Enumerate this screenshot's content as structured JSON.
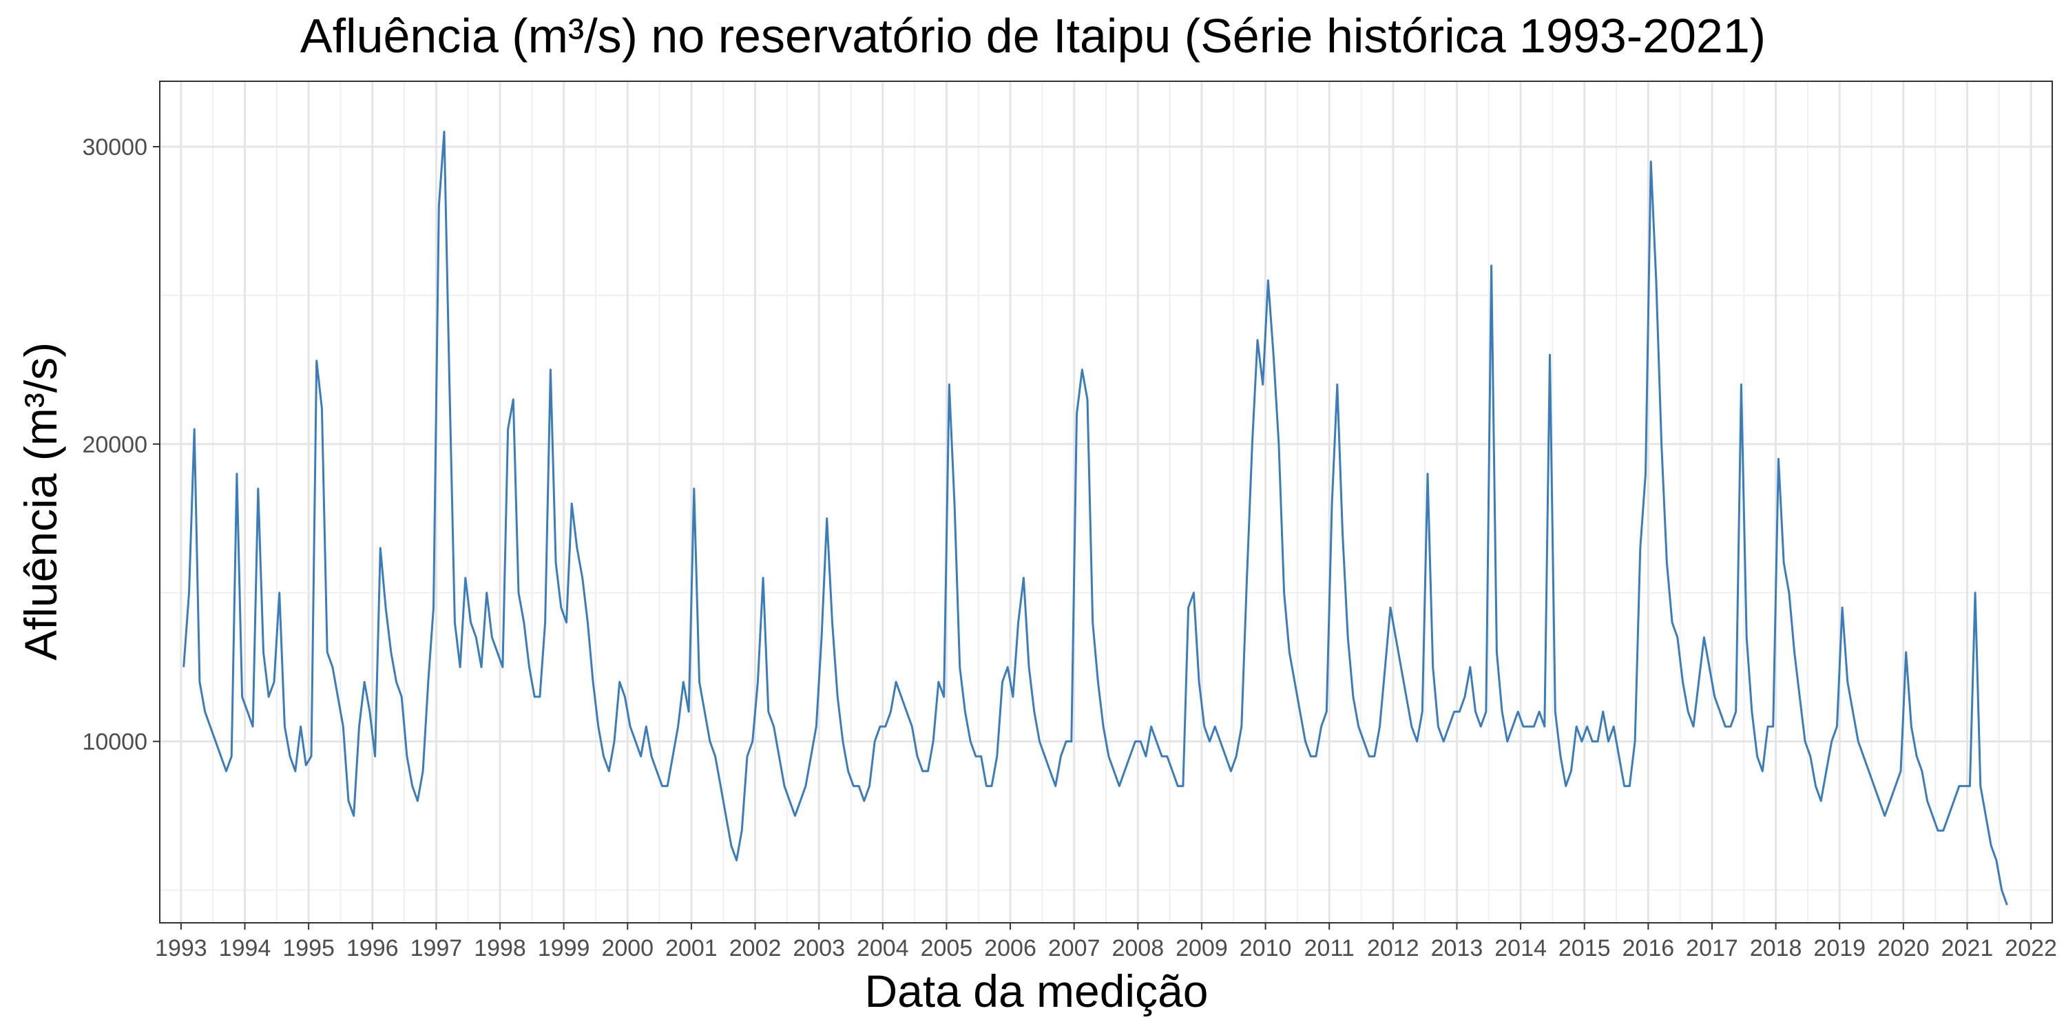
{
  "chart_data": {
    "type": "line",
    "title": "Afluência (m³/s) no reservatório de Itaipu (Série histórica 1993-2021)",
    "xlabel": "Data da medição",
    "ylabel": "Afluência (m³/s)",
    "ylim": [
      3900,
      32200
    ],
    "xlim": [
      "1992-09-01",
      "2022-05-01"
    ],
    "y_ticks": [
      10000,
      20000,
      30000
    ],
    "x_ticks": [
      "1993",
      "1994",
      "1995",
      "1996",
      "1997",
      "1998",
      "1999",
      "2000",
      "2001",
      "2002",
      "2003",
      "2004",
      "2005",
      "2006",
      "2007",
      "2008",
      "2009",
      "2010",
      "2011",
      "2012",
      "2013",
      "2014",
      "2015",
      "2016",
      "2017",
      "2018",
      "2019",
      "2020",
      "2021",
      "2022"
    ],
    "grid": true,
    "legend": "none",
    "line_color": "#3a7dba",
    "series": [
      {
        "x": [
          "1993-01",
          "1993-02",
          "1993-03",
          "1993-04",
          "1993-05",
          "1993-06",
          "1993-07",
          "1993-08",
          "1993-09",
          "1993-10",
          "1993-11",
          "1993-12",
          "1994-01",
          "1994-02",
          "1994-03",
          "1994-04",
          "1994-05",
          "1994-06",
          "1994-07",
          "1994-08",
          "1994-09",
          "1994-10",
          "1994-11",
          "1994-12",
          "1995-01",
          "1995-02",
          "1995-03",
          "1995-04",
          "1995-05",
          "1995-06",
          "1995-07",
          "1995-08",
          "1995-09",
          "1995-10",
          "1995-11",
          "1995-12",
          "1996-01",
          "1996-02",
          "1996-03",
          "1996-04",
          "1996-05",
          "1996-06",
          "1996-07",
          "1996-08",
          "1996-09",
          "1996-10",
          "1996-11",
          "1996-12",
          "1997-01",
          "1997-02",
          "1997-03",
          "1997-04",
          "1997-05",
          "1997-06",
          "1997-07",
          "1997-08",
          "1997-09",
          "1997-10",
          "1997-11",
          "1997-12",
          "1998-01",
          "1998-02",
          "1998-03",
          "1998-04",
          "1998-05",
          "1998-06",
          "1998-07",
          "1998-08",
          "1998-09",
          "1998-10",
          "1998-11",
          "1998-12",
          "1999-01",
          "1999-02",
          "1999-03",
          "1999-04",
          "1999-05",
          "1999-06",
          "1999-07",
          "1999-08",
          "1999-09",
          "1999-10",
          "1999-11",
          "1999-12",
          "2000-01",
          "2000-02",
          "2000-03",
          "2000-04",
          "2000-05",
          "2000-06",
          "2000-07",
          "2000-08",
          "2000-09",
          "2000-10",
          "2000-11",
          "2000-12",
          "2001-01",
          "2001-02",
          "2001-03",
          "2001-04",
          "2001-05",
          "2001-06",
          "2001-07",
          "2001-08",
          "2001-09",
          "2001-10",
          "2001-11",
          "2001-12",
          "2002-01",
          "2002-02",
          "2002-03",
          "2002-04",
          "2002-05",
          "2002-06",
          "2002-07",
          "2002-08",
          "2002-09",
          "2002-10",
          "2002-11",
          "2002-12",
          "2003-01",
          "2003-02",
          "2003-03",
          "2003-04",
          "2003-05",
          "2003-06",
          "2003-07",
          "2003-08",
          "2003-09",
          "2003-10",
          "2003-11",
          "2003-12",
          "2004-01",
          "2004-02",
          "2004-03",
          "2004-04",
          "2004-05",
          "2004-06",
          "2004-07",
          "2004-08",
          "2004-09",
          "2004-10",
          "2004-11",
          "2004-12",
          "2005-01",
          "2005-02",
          "2005-03",
          "2005-04",
          "2005-05",
          "2005-06",
          "2005-07",
          "2005-08",
          "2005-09",
          "2005-10",
          "2005-11",
          "2005-12",
          "2006-01",
          "2006-02",
          "2006-03",
          "2006-04",
          "2006-05",
          "2006-06",
          "2006-07",
          "2006-08",
          "2006-09",
          "2006-10",
          "2006-11",
          "2006-12",
          "2007-01",
          "2007-02",
          "2007-03",
          "2007-04",
          "2007-05",
          "2007-06",
          "2007-07",
          "2007-08",
          "2007-09",
          "2007-10",
          "2007-11",
          "2007-12",
          "2008-01",
          "2008-02",
          "2008-03",
          "2008-04",
          "2008-05",
          "2008-06",
          "2008-07",
          "2008-08",
          "2008-09",
          "2008-10",
          "2008-11",
          "2008-12",
          "2009-01",
          "2009-02",
          "2009-03",
          "2009-04",
          "2009-05",
          "2009-06",
          "2009-07",
          "2009-08",
          "2009-09",
          "2009-10",
          "2009-11",
          "2009-12",
          "2010-01",
          "2010-02",
          "2010-03",
          "2010-04",
          "2010-05",
          "2010-06",
          "2010-07",
          "2010-08",
          "2010-09",
          "2010-10",
          "2010-11",
          "2010-12",
          "2011-01",
          "2011-02",
          "2011-03",
          "2011-04",
          "2011-05",
          "2011-06",
          "2011-07",
          "2011-08",
          "2011-09",
          "2011-10",
          "2011-11",
          "2011-12",
          "2012-01",
          "2012-02",
          "2012-03",
          "2012-04",
          "2012-05",
          "2012-06",
          "2012-07",
          "2012-08",
          "2012-09",
          "2012-10",
          "2012-11",
          "2012-12",
          "2013-01",
          "2013-02",
          "2013-03",
          "2013-04",
          "2013-05",
          "2013-06",
          "2013-07",
          "2013-08",
          "2013-09",
          "2013-10",
          "2013-11",
          "2013-12",
          "2014-01",
          "2014-02",
          "2014-03",
          "2014-04",
          "2014-05",
          "2014-06",
          "2014-07",
          "2014-08",
          "2014-09",
          "2014-10",
          "2014-11",
          "2014-12",
          "2015-01",
          "2015-02",
          "2015-03",
          "2015-04",
          "2015-05",
          "2015-06",
          "2015-07",
          "2015-08",
          "2015-09",
          "2015-10",
          "2015-11",
          "2015-12",
          "2016-01",
          "2016-02",
          "2016-03",
          "2016-04",
          "2016-05",
          "2016-06",
          "2016-07",
          "2016-08",
          "2016-09",
          "2016-10",
          "2016-11",
          "2016-12",
          "2017-01",
          "2017-02",
          "2017-03",
          "2017-04",
          "2017-05",
          "2017-06",
          "2017-07",
          "2017-08",
          "2017-09",
          "2017-10",
          "2017-11",
          "2017-12",
          "2018-01",
          "2018-02",
          "2018-03",
          "2018-04",
          "2018-05",
          "2018-06",
          "2018-07",
          "2018-08",
          "2018-09",
          "2018-10",
          "2018-11",
          "2018-12",
          "2019-01",
          "2019-02",
          "2019-03",
          "2019-04",
          "2019-05",
          "2019-06",
          "2019-07",
          "2019-08",
          "2019-09",
          "2019-10",
          "2019-11",
          "2019-12",
          "2020-01",
          "2020-02",
          "2020-03",
          "2020-04",
          "2020-05",
          "2020-06",
          "2020-07",
          "2020-08",
          "2020-09",
          "2020-10",
          "2020-11",
          "2020-12",
          "2021-01",
          "2021-02",
          "2021-03",
          "2021-04",
          "2021-05",
          "2021-06",
          "2021-07",
          "2021-08"
        ],
        "y": [
          12500,
          15000,
          20500,
          12000,
          11000,
          10500,
          10000,
          9500,
          9000,
          9500,
          19000,
          11500,
          11000,
          10500,
          18500,
          13000,
          11500,
          12000,
          15000,
          10500,
          9500,
          9000,
          10500,
          9200,
          9500,
          22800,
          21200,
          13000,
          12500,
          11500,
          10500,
          8000,
          7500,
          10500,
          12000,
          11000,
          9500,
          16500,
          14500,
          13000,
          12000,
          11500,
          9500,
          8500,
          8000,
          9000,
          12000,
          14500,
          28000,
          30500,
          22000,
          14000,
          12500,
          15500,
          14000,
          13500,
          12500,
          15000,
          13500,
          13000,
          12500,
          20500,
          21500,
          15000,
          14000,
          12500,
          11500,
          11500,
          14000,
          22500,
          16000,
          14500,
          14000,
          18000,
          16500,
          15500,
          14000,
          12000,
          10500,
          9500,
          9000,
          10000,
          12000,
          11500,
          10500,
          10000,
          9500,
          10500,
          9500,
          9000,
          8500,
          8500,
          9500,
          10500,
          12000,
          11000,
          18500,
          12000,
          11000,
          10000,
          9500,
          8500,
          7500,
          6500,
          6000,
          7000,
          9500,
          10000,
          12000,
          15500,
          11000,
          10500,
          9500,
          8500,
          8000,
          7500,
          8000,
          8500,
          9500,
          10500,
          13500,
          17500,
          14000,
          11500,
          10000,
          9000,
          8500,
          8500,
          8000,
          8500,
          10000,
          10500,
          10500,
          11000,
          12000,
          11500,
          11000,
          10500,
          9500,
          9000,
          9000,
          10000,
          12000,
          11500,
          22000,
          18000,
          12500,
          11000,
          10000,
          9500,
          9500,
          8500,
          8500,
          9500,
          12000,
          12500,
          11500,
          14000,
          15500,
          12500,
          11000,
          10000,
          9500,
          9000,
          8500,
          9500,
          10000,
          10000,
          21000,
          22500,
          21500,
          14000,
          12000,
          10500,
          9500,
          9000,
          8500,
          9000,
          9500,
          10000,
          10000,
          9500,
          10500,
          10000,
          9500,
          9500,
          9000,
          8500,
          8500,
          14500,
          15000,
          12000,
          10500,
          10000,
          10500,
          10000,
          9500,
          9000,
          9500,
          10500,
          15500,
          20000,
          23500,
          22000,
          25500,
          23000,
          20000,
          15000,
          13000,
          12000,
          11000,
          10000,
          9500,
          9500,
          10500,
          11000,
          18000,
          22000,
          17000,
          13500,
          11500,
          10500,
          10000,
          9500,
          9500,
          10500,
          12500,
          14500,
          13500,
          12500,
          11500,
          10500,
          10000,
          11000,
          19000,
          12500,
          10500,
          10000,
          10500,
          11000,
          11000,
          11500,
          12500,
          11000,
          10500,
          11000,
          26000,
          13000,
          11000,
          10000,
          10500,
          11000,
          10500,
          10500,
          10500,
          11000,
          10500,
          23000,
          11000,
          9500,
          8500,
          9000,
          10500,
          10000,
          10500,
          10000,
          10000,
          11000,
          10000,
          10500,
          9500,
          8500,
          8500,
          10000,
          16500,
          19000,
          29500,
          25500,
          20000,
          16000,
          14000,
          13500,
          12000,
          11000,
          10500,
          12000,
          13500,
          12500,
          11500,
          11000,
          10500,
          10500,
          11000,
          22000,
          13500,
          11000,
          9500,
          9000,
          10500,
          10500,
          19500,
          16000,
          15000,
          13000,
          11500,
          10000,
          9500,
          8500,
          8000,
          9000,
          10000,
          10500,
          14500,
          12000,
          11000,
          10000,
          9500,
          9000,
          8500,
          8000,
          7500,
          8000,
          8500,
          9000,
          13000,
          10500,
          9500,
          9000,
          8000,
          7500,
          7000,
          7000,
          7500,
          8000,
          8500,
          8500,
          8500,
          15000,
          8500,
          7500,
          6500,
          6000,
          5000,
          4500
        ]
      }
    ]
  }
}
